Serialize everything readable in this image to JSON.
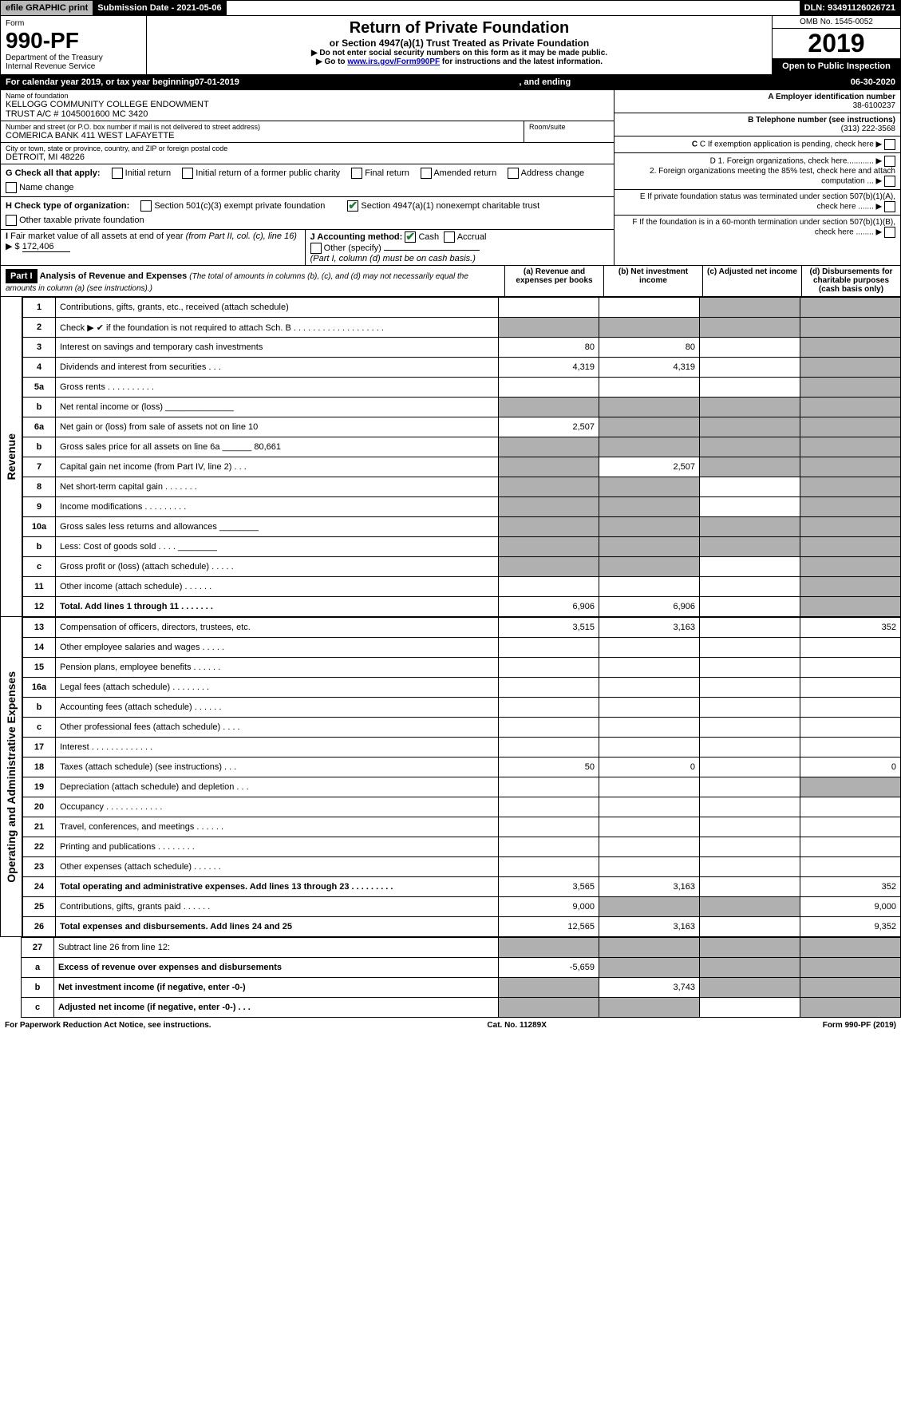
{
  "topbar": {
    "efile": "efile GRAPHIC print",
    "sub": "Submission Date - 2021-05-06",
    "dln": "DLN: 93491126026721"
  },
  "hdr": {
    "form": "Form",
    "fno": "990-PF",
    "dept": "Department of the Treasury\nInternal Revenue Service",
    "title": "Return of Private Foundation",
    "sub": "or Section 4947(a)(1) Trust Treated as Private Foundation",
    "l1": "▶ Do not enter social security numbers on this form as it may be made public.",
    "l2": "▶ Go to www.irs.gov/Form990PF for instructions and the latest information.",
    "omb": "OMB No. 1545-0052",
    "year": "2019",
    "open": "Open to Public Inspection"
  },
  "cal": {
    "pre": "For calendar year 2019, or tax year beginning ",
    "begin": "07-01-2019",
    "mid": ", and ending ",
    "end": "06-30-2020"
  },
  "id": {
    "name_lbl": "Name of foundation",
    "name": "KELLOGG COMMUNITY COLLEGE ENDOWMENT\nTRUST A/C # 1045001600 MC 3420",
    "addr_lbl": "Number and street (or P.O. box number if mail is not delivered to street address)",
    "addr": "COMERICA BANK 411 WEST LAFAYETTE",
    "room_lbl": "Room/suite",
    "city_lbl": "City or town, state or province, country, and ZIP or foreign postal code",
    "city": "DETROIT, MI  48226",
    "a_lbl": "A Employer identification number",
    "a": "38-6100237",
    "b_lbl": "B Telephone number (see instructions)",
    "b": "(313) 222-3568",
    "c_lbl": "C If exemption application is pending, check here",
    "d1": "D 1. Foreign organizations, check here............",
    "d2": "2. Foreign organizations meeting the 85% test, check here and attach computation ...",
    "e": "E  If private foundation status was terminated under section 507(b)(1)(A), check here .......",
    "f": "F  If the foundation is in a 60-month termination under section 507(b)(1)(B), check here ........"
  },
  "g": {
    "lbl": "G Check all that apply:",
    "opts": [
      "Initial return",
      "Initial return of a former public charity",
      "Final return",
      "Amended return",
      "Address change",
      "Name change"
    ]
  },
  "h": {
    "lbl": "H Check type of organization:",
    "o1": "Section 501(c)(3) exempt private foundation",
    "o2": "Section 4947(a)(1) nonexempt charitable trust",
    "o3": "Other taxable private foundation",
    "o2_checked": true
  },
  "i": {
    "lbl": "I Fair market value of all assets at end of year (from Part II, col. (c), line 16) ▶ $",
    "val": "172,406"
  },
  "j": {
    "lbl": "J Accounting method:",
    "cash": "Cash",
    "accr": "Accrual",
    "other": "Other (specify)",
    "note": "(Part I, column (d) must be on cash basis.)",
    "cash_checked": true
  },
  "part1": {
    "bar": "Part I",
    "title": "Analysis of Revenue and Expenses",
    "ital": "(The total of amounts in columns (b), (c), and (d) may not necessarily equal the amounts in column (a) (see instructions).)",
    "cols": {
      "a": "(a)   Revenue and expenses per books",
      "b": "(b)   Net investment income",
      "c": "(c)   Adjusted net income",
      "d": "(d)   Disbursements for charitable purposes (cash basis only)"
    }
  },
  "sections": {
    "rev": "Revenue",
    "oae": "Operating and Administrative Expenses"
  },
  "rows": [
    {
      "sec": "rev",
      "n": "1",
      "d": "Contributions, gifts, grants, etc., received (attach schedule)",
      "a": "",
      "b": "",
      "c": "S",
      "dd": "S"
    },
    {
      "sec": "rev",
      "n": "2",
      "d": "Check ▶ ✔ if the foundation is not required to attach Sch. B  . . . . . . . . . . . . . . . . . . .",
      "a": "S",
      "b": "S",
      "c": "S",
      "dd": "S"
    },
    {
      "sec": "rev",
      "n": "3",
      "d": "Interest on savings and temporary cash investments",
      "a": "80",
      "b": "80",
      "c": "",
      "dd": "S"
    },
    {
      "sec": "rev",
      "n": "4",
      "d": "Dividends and interest from securities   .   .   .",
      "a": "4,319",
      "b": "4,319",
      "c": "",
      "dd": "S"
    },
    {
      "sec": "rev",
      "n": "5a",
      "d": "Gross rents   .   .   .   .   .   .   .   .   .   .",
      "a": "",
      "b": "",
      "c": "",
      "dd": "S"
    },
    {
      "sec": "rev",
      "n": "b",
      "d": "Net rental income or (loss) ______________",
      "a": "S",
      "b": "S",
      "c": "S",
      "dd": "S"
    },
    {
      "sec": "rev",
      "n": "6a",
      "d": "Net gain or (loss) from sale of assets not on line 10",
      "a": "2,507",
      "b": "S",
      "c": "S",
      "dd": "S"
    },
    {
      "sec": "rev",
      "n": "b",
      "d": "Gross sales price for all assets on line 6a ______ 80,661",
      "a": "S",
      "b": "S",
      "c": "S",
      "dd": "S"
    },
    {
      "sec": "rev",
      "n": "7",
      "d": "Capital gain net income (from Part IV, line 2)   .   .   .",
      "a": "S",
      "b": "2,507",
      "c": "S",
      "dd": "S"
    },
    {
      "sec": "rev",
      "n": "8",
      "d": "Net short-term capital gain   .   .   .   .   .   .   .",
      "a": "S",
      "b": "S",
      "c": "",
      "dd": "S"
    },
    {
      "sec": "rev",
      "n": "9",
      "d": "Income modifications   .   .   .   .   .   .   .   .   .",
      "a": "S",
      "b": "S",
      "c": "",
      "dd": "S"
    },
    {
      "sec": "rev",
      "n": "10a",
      "d": "Gross sales less returns and allowances ________",
      "a": "S",
      "b": "S",
      "c": "S",
      "dd": "S"
    },
    {
      "sec": "rev",
      "n": "b",
      "d": "Less: Cost of goods sold   .   .   .   . ________",
      "a": "S",
      "b": "S",
      "c": "S",
      "dd": "S"
    },
    {
      "sec": "rev",
      "n": "c",
      "d": "Gross profit or (loss) (attach schedule)   .   .   .   .   .",
      "a": "S",
      "b": "S",
      "c": "",
      "dd": "S"
    },
    {
      "sec": "rev",
      "n": "11",
      "d": "Other income (attach schedule)   .   .   .   .   .   .",
      "a": "",
      "b": "",
      "c": "",
      "dd": "S"
    },
    {
      "sec": "rev",
      "n": "12",
      "d": "Total. Add lines 1 through 11   .   .   .   .   .   .   .",
      "a": "6,906",
      "b": "6,906",
      "c": "",
      "dd": "S",
      "bold": true
    },
    {
      "sec": "oae",
      "n": "13",
      "d": "Compensation of officers, directors, trustees, etc.",
      "a": "3,515",
      "b": "3,163",
      "c": "",
      "dd": "352"
    },
    {
      "sec": "oae",
      "n": "14",
      "d": "Other employee salaries and wages   .   .   .   .   .",
      "a": "",
      "b": "",
      "c": "",
      "dd": ""
    },
    {
      "sec": "oae",
      "n": "15",
      "d": "Pension plans, employee benefits   .   .   .   .   .   .",
      "a": "",
      "b": "",
      "c": "",
      "dd": ""
    },
    {
      "sec": "oae",
      "n": "16a",
      "d": "Legal fees (attach schedule)   .   .   .   .   .   .   .   .",
      "a": "",
      "b": "",
      "c": "",
      "dd": ""
    },
    {
      "sec": "oae",
      "n": "b",
      "d": "Accounting fees (attach schedule)   .   .   .   .   .   .",
      "a": "",
      "b": "",
      "c": "",
      "dd": ""
    },
    {
      "sec": "oae",
      "n": "c",
      "d": "Other professional fees (attach schedule)   .   .   .   .",
      "a": "",
      "b": "",
      "c": "",
      "dd": ""
    },
    {
      "sec": "oae",
      "n": "17",
      "d": "Interest   .   .   .   .   .   .   .   .   .   .   .   .   .",
      "a": "",
      "b": "",
      "c": "",
      "dd": ""
    },
    {
      "sec": "oae",
      "n": "18",
      "d": "Taxes (attach schedule) (see instructions)   .   .   .",
      "a": "50",
      "b": "0",
      "c": "",
      "dd": "0"
    },
    {
      "sec": "oae",
      "n": "19",
      "d": "Depreciation (attach schedule) and depletion   .   .   .",
      "a": "",
      "b": "",
      "c": "",
      "dd": "S"
    },
    {
      "sec": "oae",
      "n": "20",
      "d": "Occupancy   .   .   .   .   .   .   .   .   .   .   .   .",
      "a": "",
      "b": "",
      "c": "",
      "dd": ""
    },
    {
      "sec": "oae",
      "n": "21",
      "d": "Travel, conferences, and meetings   .   .   .   .   .   .",
      "a": "",
      "b": "",
      "c": "",
      "dd": ""
    },
    {
      "sec": "oae",
      "n": "22",
      "d": "Printing and publications   .   .   .   .   .   .   .   .",
      "a": "",
      "b": "",
      "c": "",
      "dd": ""
    },
    {
      "sec": "oae",
      "n": "23",
      "d": "Other expenses (attach schedule)   .   .   .   .   .   .",
      "a": "",
      "b": "",
      "c": "",
      "dd": ""
    },
    {
      "sec": "oae",
      "n": "24",
      "d": "Total operating and administrative expenses. Add lines 13 through 23   .   .   .   .   .   .   .   .   .",
      "a": "3,565",
      "b": "3,163",
      "c": "",
      "dd": "352",
      "bold": true
    },
    {
      "sec": "oae",
      "n": "25",
      "d": "Contributions, gifts, grants paid   .   .   .   .   .   .",
      "a": "9,000",
      "b": "S",
      "c": "S",
      "dd": "9,000"
    },
    {
      "sec": "oae",
      "n": "26",
      "d": "Total expenses and disbursements. Add lines 24 and 25",
      "a": "12,565",
      "b": "3,163",
      "c": "",
      "dd": "9,352",
      "bold": true
    },
    {
      "sec": "none",
      "n": "27",
      "d": "Subtract line 26 from line 12:",
      "a": "S",
      "b": "S",
      "c": "S",
      "dd": "S"
    },
    {
      "sec": "none",
      "n": "a",
      "d": "Excess of revenue over expenses and disbursements",
      "a": "-5,659",
      "b": "S",
      "c": "S",
      "dd": "S",
      "bold": true
    },
    {
      "sec": "none",
      "n": "b",
      "d": "Net investment income (if negative, enter -0-)",
      "a": "S",
      "b": "3,743",
      "c": "S",
      "dd": "S",
      "bold": true
    },
    {
      "sec": "none",
      "n": "c",
      "d": "Adjusted net income (if negative, enter -0-)   .   .   .",
      "a": "S",
      "b": "S",
      "c": "",
      "dd": "S",
      "bold": true
    }
  ],
  "footer": {
    "l": "For Paperwork Reduction Act Notice, see instructions.",
    "m": "Cat. No. 11289X",
    "r": "Form 990-PF (2019)"
  },
  "colors": {
    "black": "#000000",
    "grey": "#b8b8b8",
    "shade": "#b0b0b0",
    "link": "#0000cc",
    "check": "#1a7f2e"
  }
}
